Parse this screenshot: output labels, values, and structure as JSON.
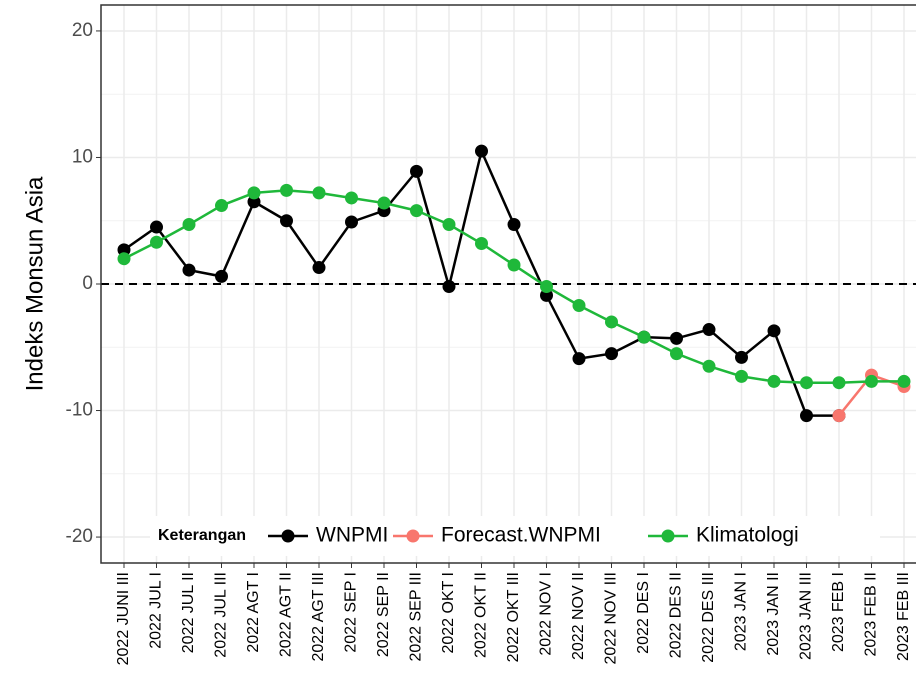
{
  "chart_data": {
    "type": "line",
    "ylabel": "Indeks Monsun Asia",
    "legend_title": "Keterangan",
    "legend_position": "bottom-inside",
    "grid": true,
    "hline": 0,
    "ylim": [
      -22.05,
      22.05
    ],
    "yticks": [
      -20,
      -10,
      0,
      10,
      20
    ],
    "yminor": [
      -15,
      -5,
      5,
      15
    ],
    "categories": [
      "2022 JUNI III",
      "2022 JUL I",
      "2022 JUL II",
      "2022 JUL III",
      "2022 AGT I",
      "2022 AGT II",
      "2022 AGT III",
      "2022 SEP I",
      "2022 SEP II",
      "2022 SEP III",
      "2022 OKT I",
      "2022 OKT II",
      "2022 OKT III",
      "2022 NOV I",
      "2022 NOV II",
      "2022 NOV III",
      "2022 DES I",
      "2022 DES II",
      "2022 DES III",
      "2023 JAN I",
      "2023 JAN II",
      "2023 JAN III",
      "2023 FEB I",
      "2023 FEB II",
      "2023 FEB III"
    ],
    "series": [
      {
        "name": "WNPMI",
        "color": "#000000",
        "values": [
          2.7,
          4.5,
          1.1,
          0.6,
          6.5,
          5.0,
          1.3,
          4.9,
          5.8,
          8.9,
          -0.2,
          10.5,
          4.7,
          -0.9,
          -5.9,
          -5.5,
          -4.2,
          -4.3,
          -3.6,
          -5.8,
          -3.7,
          -10.4,
          -10.4,
          null,
          null
        ]
      },
      {
        "name": "Forecast.WNPMI",
        "color": "#f8766d",
        "values": [
          null,
          null,
          null,
          null,
          null,
          null,
          null,
          null,
          null,
          null,
          null,
          null,
          null,
          null,
          null,
          null,
          null,
          null,
          null,
          null,
          null,
          null,
          -10.4,
          -7.2,
          -8.1
        ]
      },
      {
        "name": "Klimatologi",
        "color": "#1fb83a",
        "values": [
          2.0,
          3.3,
          4.7,
          6.2,
          7.2,
          7.4,
          7.2,
          6.8,
          6.4,
          5.8,
          4.7,
          3.2,
          1.5,
          -0.2,
          -1.7,
          -3.0,
          -4.2,
          -5.5,
          -6.5,
          -7.3,
          -7.7,
          -7.8,
          -7.8,
          -7.7,
          -7.7
        ]
      }
    ]
  }
}
